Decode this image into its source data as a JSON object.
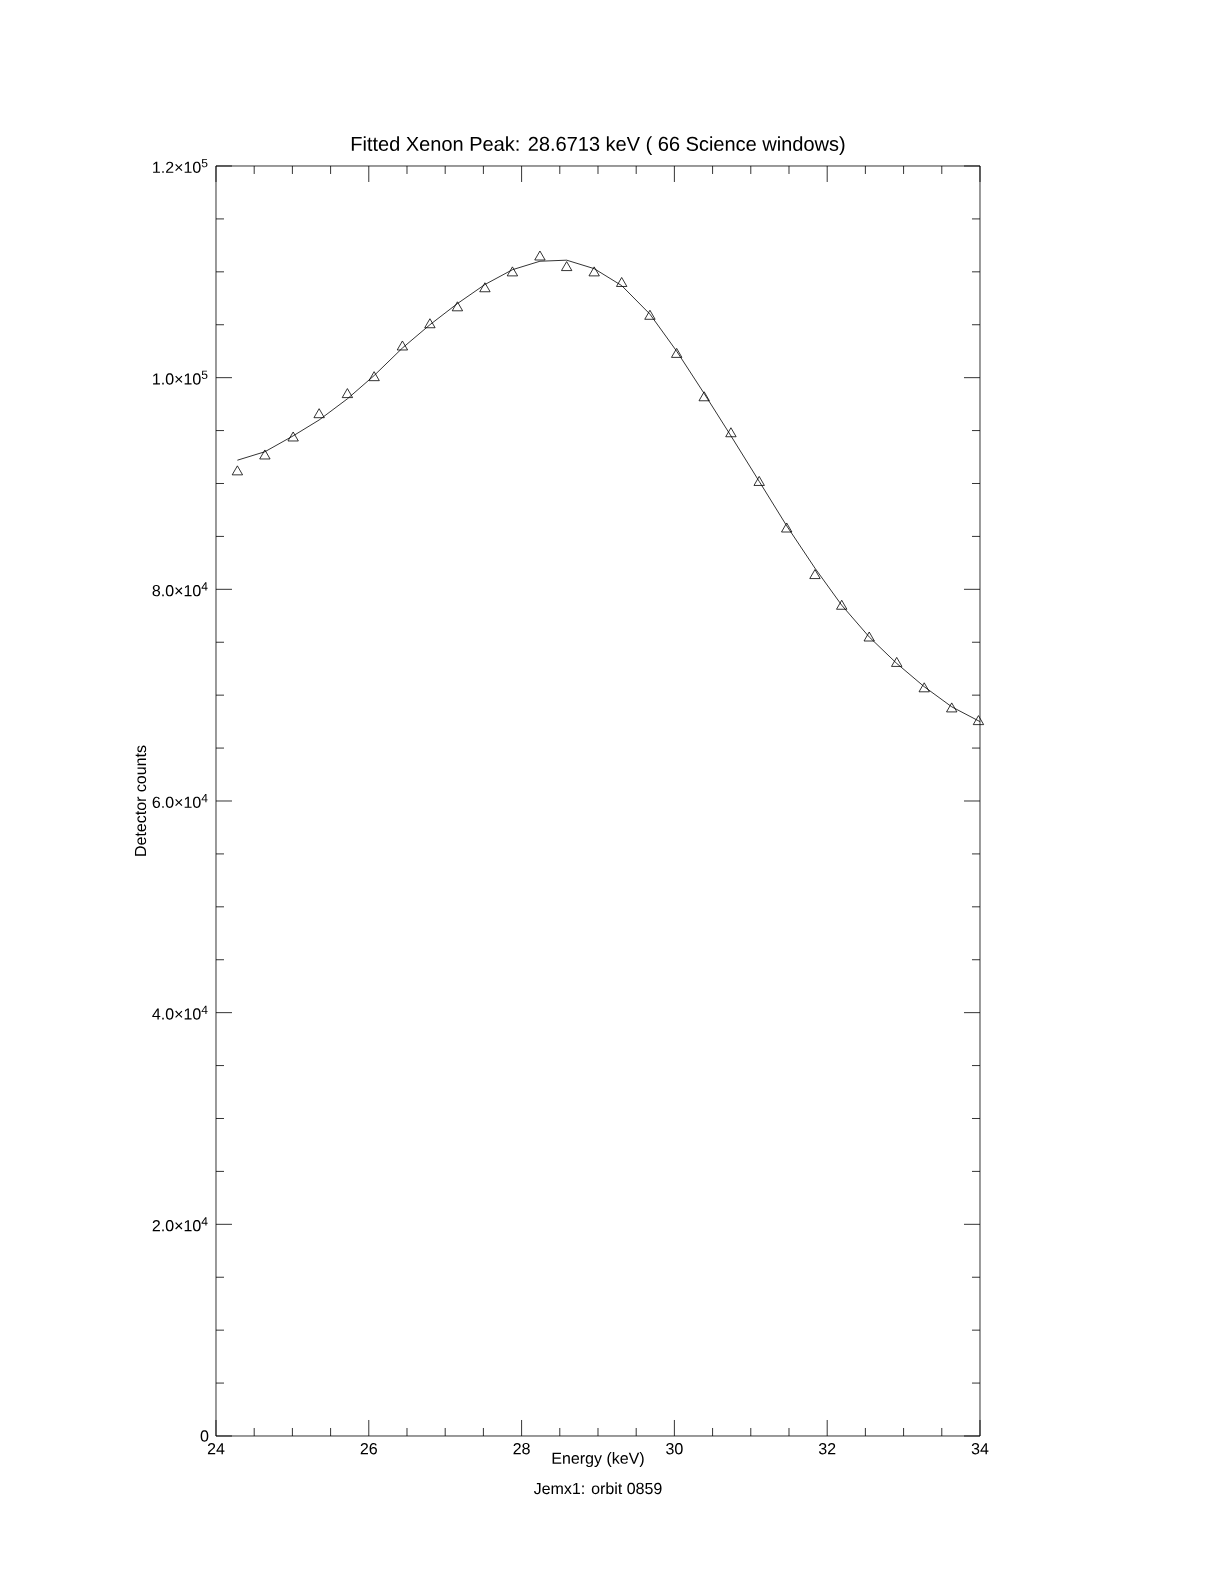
{
  "chart_data": {
    "type": "scatter",
    "title": "Fitted Xenon Peak: 28.6713 keV ( 66 Science windows)",
    "xlabel": "Energy (keV)",
    "ylabel": "Detector counts",
    "annotations": [
      "Jemx1: orbit 0859"
    ],
    "xlim": [
      24,
      34
    ],
    "xticks": [
      24,
      26,
      28,
      30,
      32,
      34
    ],
    "ylim": [
      0,
      120000
    ],
    "yticks": [
      {
        "value": 0,
        "label": "0"
      },
      {
        "value": 20000,
        "label": "2.0×10$^{4}$"
      },
      {
        "value": 40000,
        "label": "4.0×10$^{4}$"
      },
      {
        "value": 60000,
        "label": "6.0×10$^{4}$"
      },
      {
        "value": 80000,
        "label": "8.0×10$^{4}$"
      },
      {
        "value": 100000,
        "label": "1.0×10$^{5}$"
      },
      {
        "value": 120000,
        "label": "1.2×10$^{5}$"
      }
    ],
    "grid": false,
    "series": [
      {
        "marker": "triangle",
        "color": "#000000",
        "x": [
          24.28,
          24.64,
          25.01,
          25.35,
          25.72,
          26.07,
          26.44,
          26.8,
          27.16,
          27.52,
          27.88,
          28.24,
          28.59,
          28.95,
          29.31,
          29.68,
          30.03,
          30.39,
          30.74,
          31.11,
          31.47,
          31.84,
          32.19,
          32.55,
          32.91,
          33.27,
          33.63,
          33.98
        ],
        "values": [
          91100,
          92600,
          94300,
          96500,
          98400,
          100000,
          102900,
          105000,
          106600,
          108400,
          109900,
          111400,
          110400,
          109900,
          108900,
          105800,
          102200,
          98100,
          94700,
          90100,
          85700,
          81300,
          78400,
          75400,
          73000,
          70600,
          68700,
          67500
        ]
      },
      {
        "type": "line",
        "marker": "none",
        "line_style": "solid",
        "color": "#000000",
        "x": [
          24.28,
          24.64,
          25.01,
          25.35,
          25.72,
          26.07,
          26.44,
          26.8,
          27.16,
          27.52,
          27.88,
          28.24,
          28.59,
          28.95,
          29.31,
          29.68,
          30.03,
          30.39,
          30.74,
          31.11,
          31.47,
          31.84,
          32.19,
          32.55,
          32.91,
          33.27,
          33.63,
          34.0
        ],
        "values": [
          92200,
          93000,
          94500,
          96000,
          98000,
          100200,
          102800,
          105000,
          107000,
          108800,
          110200,
          111000,
          111100,
          110300,
          108700,
          106000,
          102500,
          98500,
          94500,
          90200,
          86000,
          82000,
          78500,
          75500,
          73000,
          70800,
          68900,
          67500
        ]
      }
    ]
  }
}
